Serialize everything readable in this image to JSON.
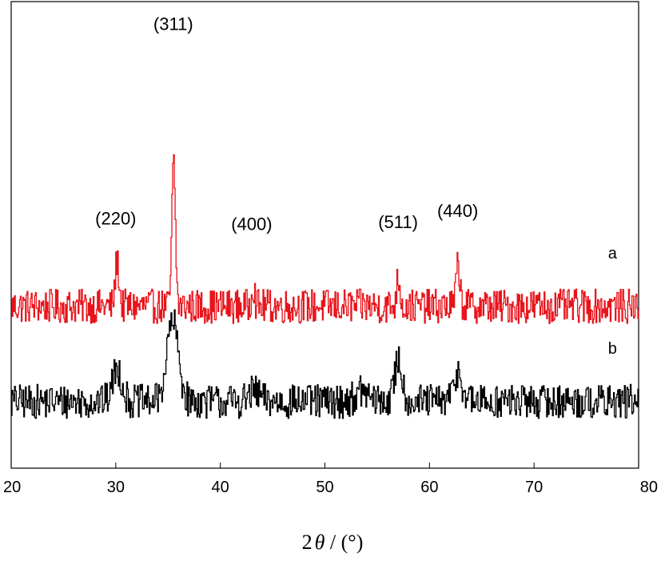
{
  "chart_data": {
    "type": "line",
    "xlabel_parts": {
      "num": "2",
      "theta": "θ",
      "unit": " / (°)"
    },
    "xlim": [
      20,
      80
    ],
    "xticks": [
      "20",
      "30",
      "40",
      "50",
      "60",
      "70",
      "80"
    ],
    "yticks_shown": false,
    "grid": false,
    "annotations": [
      {
        "text": "(220)",
        "x": 30.0,
        "y": 0.93
      },
      {
        "text": "(311)",
        "x": 35.5,
        "y": 1.95
      },
      {
        "text": "(400)",
        "x": 43.0,
        "y": 0.9
      },
      {
        "text": "(511)",
        "x": 57.0,
        "y": 0.91
      },
      {
        "text": "(440)",
        "x": 62.7,
        "y": 0.97
      }
    ],
    "series": [
      {
        "name": "a",
        "color": "#e8141b",
        "baseline": 0.5,
        "peaks": [
          {
            "x": 30.1,
            "height": 0.24,
            "width": 0.18
          },
          {
            "x": 35.5,
            "height": 0.75,
            "width": 0.17
          },
          {
            "x": 43.1,
            "height": 0.12,
            "width": 0.15
          },
          {
            "x": 57.0,
            "height": 0.15,
            "width": 0.17
          },
          {
            "x": 62.7,
            "height": 0.22,
            "width": 0.18
          }
        ],
        "noise": 0.09
      },
      {
        "name": "b",
        "color": "#000000",
        "baseline": 0.0,
        "peaks": [
          {
            "x": 30.1,
            "height": 0.17,
            "width": 0.45
          },
          {
            "x": 35.4,
            "height": 0.42,
            "width": 0.55
          },
          {
            "x": 43.2,
            "height": 0.05,
            "width": 0.5
          },
          {
            "x": 53.5,
            "height": 0.05,
            "width": 0.6
          },
          {
            "x": 57.0,
            "height": 0.22,
            "width": 0.35
          },
          {
            "x": 62.7,
            "height": 0.15,
            "width": 0.4
          }
        ],
        "noise": 0.09
      }
    ],
    "ylim": [
      -0.35,
      2.1
    ]
  }
}
